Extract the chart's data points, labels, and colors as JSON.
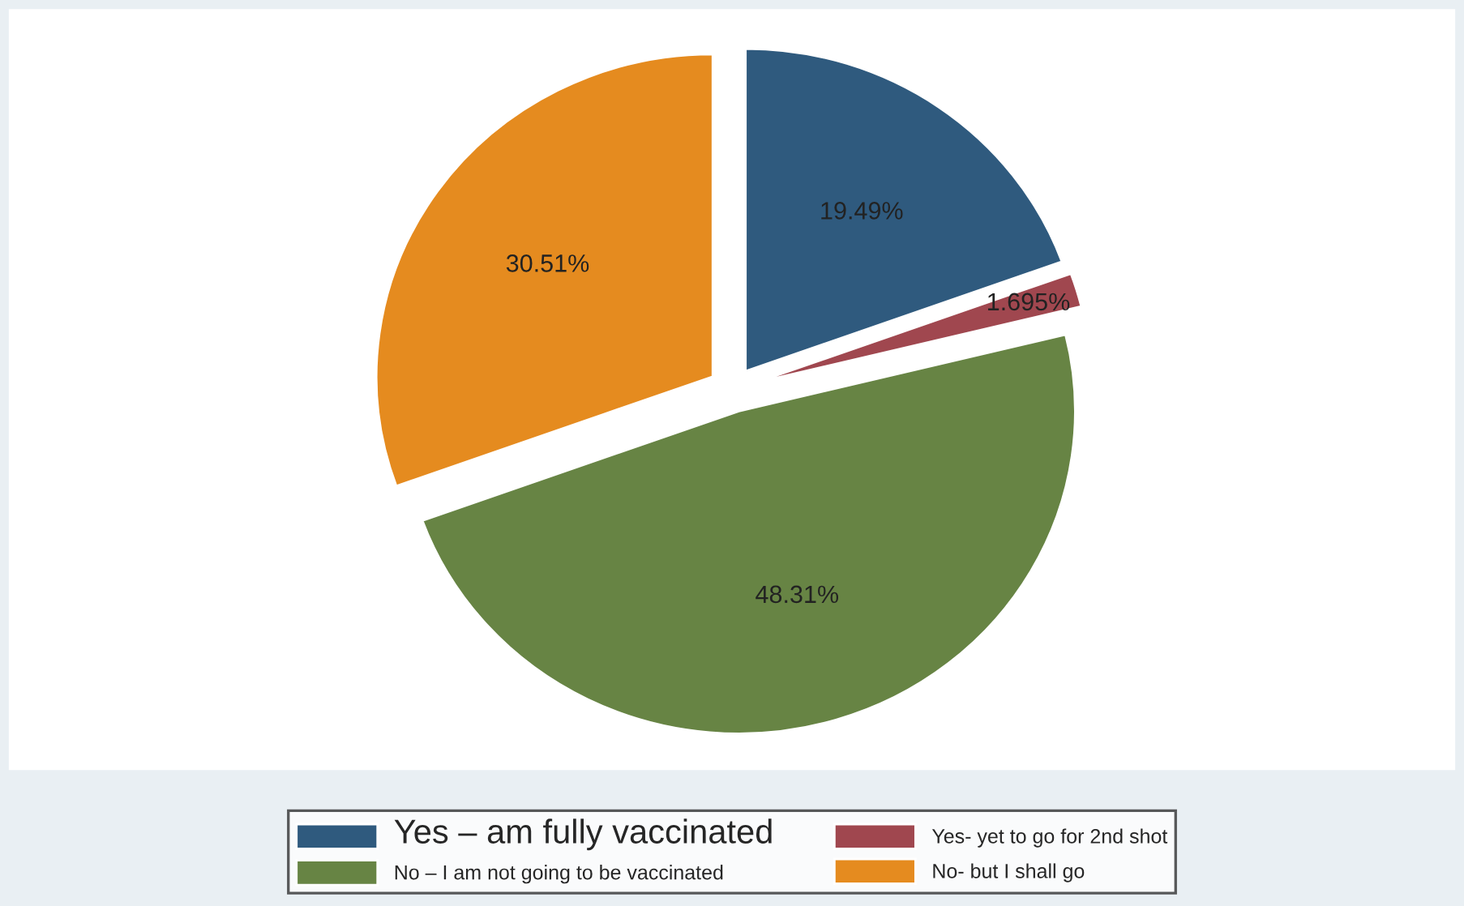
{
  "chart_data": {
    "type": "pie",
    "categories": [
      "Yes – am fully vaccinated",
      "Yes- yet to go for 2nd shot",
      "No – I am not going to be vaccinated",
      "No- but I shall go"
    ],
    "values": [
      19.49,
      1.695,
      48.31,
      30.51
    ],
    "value_labels": [
      "19.49%",
      "1.695%",
      "48.31%",
      "30.51%"
    ],
    "colors": [
      "#2f5a7e",
      "#a0474f",
      "#678444",
      "#e58b1f"
    ],
    "legend": "bottom"
  }
}
